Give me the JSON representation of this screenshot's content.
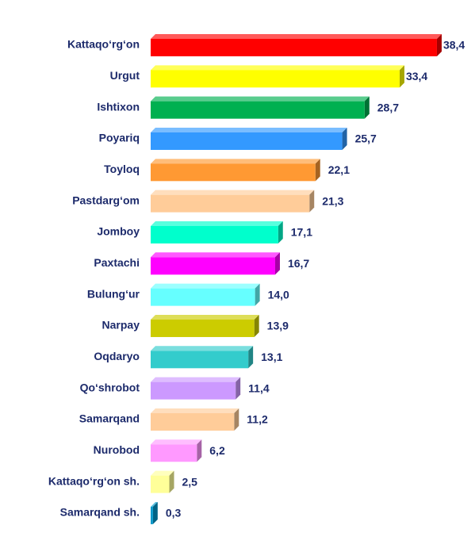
{
  "chart_data": {
    "type": "bar",
    "orientation": "horizontal",
    "categories": [
      "Kattaqo‘rg‘on",
      "Urgut",
      "Ishtixon",
      "Poyariq",
      "Toyloq",
      "Pastdarg‘om",
      "Jomboy",
      "Paxtachi",
      "Bulung‘ur",
      "Narpay",
      "Oqdaryo",
      "Qo‘shrobot",
      "Samarqand",
      "Nurobod",
      "Kattaqo‘rg‘on sh.",
      "Samarqand sh."
    ],
    "values": [
      38.4,
      33.4,
      28.7,
      25.7,
      22.1,
      21.3,
      17.1,
      16.7,
      14.0,
      13.9,
      13.1,
      11.4,
      11.2,
      6.2,
      2.5,
      0.3
    ],
    "value_labels": [
      "38,4",
      "33,4",
      "28,7",
      "25,7",
      "22,1",
      "21,3",
      "17,1",
      "16,7",
      "14,0",
      "13,9",
      "13,1",
      "11,4",
      "11,2",
      "6,2",
      "2,5",
      "0,3"
    ],
    "colors": [
      "#ff0000",
      "#ffff00",
      "#00b050",
      "#3399ff",
      "#ff9933",
      "#ffcc99",
      "#00ffcc",
      "#ff00ff",
      "#66ffff",
      "#cccc00",
      "#33cccc",
      "#cc99ff",
      "#ffcc99",
      "#ff99ff",
      "#ffff99",
      "#0099cc"
    ]
  }
}
